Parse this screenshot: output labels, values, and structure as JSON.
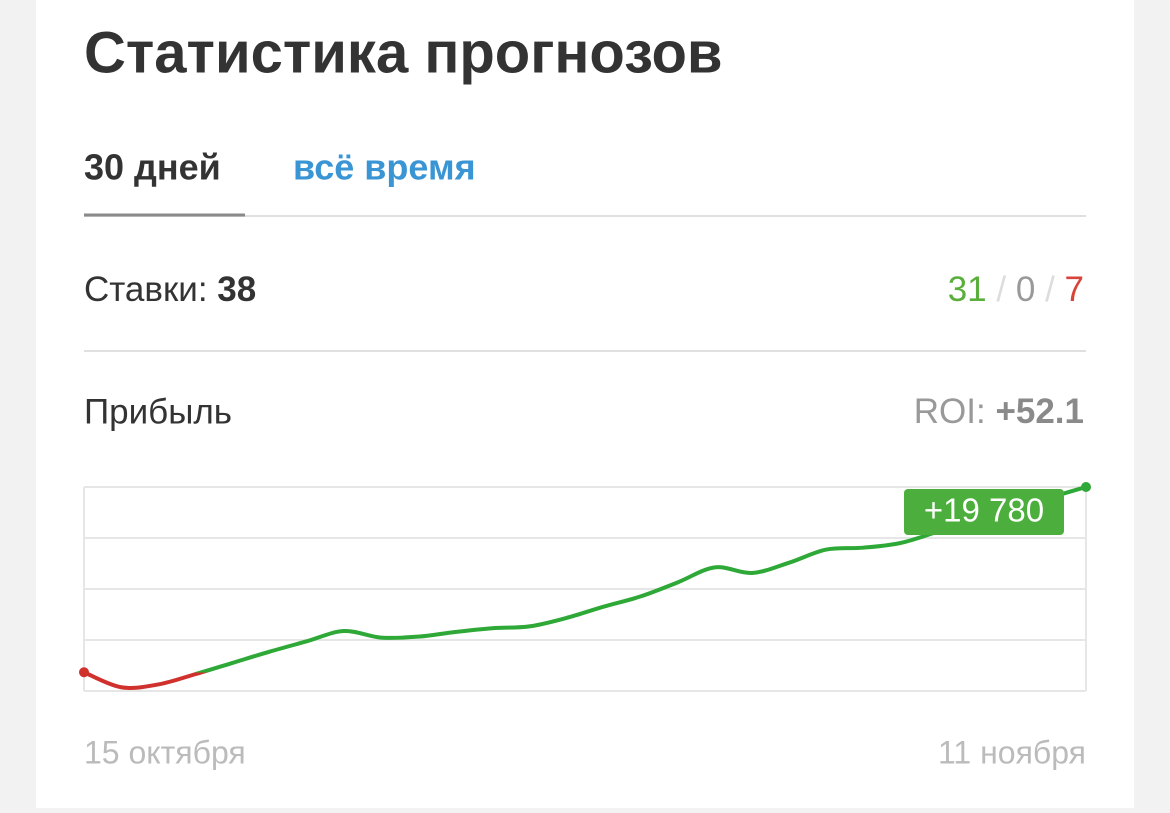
{
  "header": {
    "title": "Статистика прогнозов"
  },
  "tabs": [
    "30 дней",
    "всё время"
  ],
  "bets": {
    "label": "Ставки:",
    "total": 38,
    "won": 31,
    "draw": 0,
    "lost": 7,
    "separator": "/"
  },
  "profit": {
    "label": "Прибыль",
    "roi_label": "ROI:",
    "roi": "+52.1"
  },
  "chart_data": {
    "type": "line",
    "x": [
      "15 октября",
      null,
      null,
      null,
      null,
      null,
      null,
      null,
      null,
      null,
      null,
      null,
      null,
      null,
      null,
      null,
      null,
      null,
      null,
      null,
      null,
      null,
      null,
      null,
      null,
      null,
      null,
      "11 ноября"
    ],
    "values": [
      0,
      -1600,
      -1300,
      -200,
      1000,
      2200,
      3300,
      4400,
      3700,
      3800,
      4300,
      4700,
      4900,
      5800,
      7000,
      8100,
      9600,
      11200,
      10600,
      11700,
      13100,
      13300,
      13800,
      15000,
      16300,
      17300,
      18600,
      19780
    ],
    "value_labels": [
      null,
      null,
      null,
      null,
      null,
      null,
      null,
      null,
      null,
      null,
      null,
      null,
      null,
      null,
      null,
      null,
      null,
      null,
      null,
      null,
      null,
      null,
      null,
      null,
      null,
      null,
      null,
      "+19 780"
    ],
    "color": "#2ea836",
    "negative_color": "#d0312d",
    "label_color": "#4cae3c",
    "ylim": [
      -2000,
      19780
    ]
  }
}
